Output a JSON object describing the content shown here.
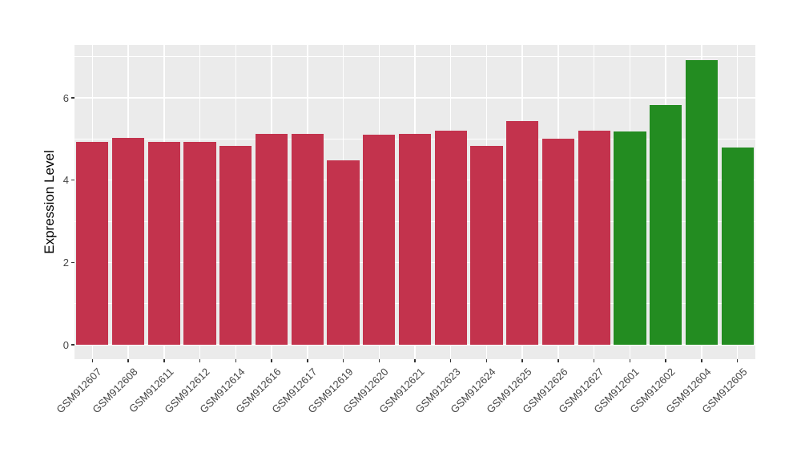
{
  "chart_data": {
    "type": "bar",
    "title": "",
    "xlabel": "",
    "ylabel": "Expression Level",
    "categories": [
      "GSM912607",
      "GSM912608",
      "GSM912611",
      "GSM912612",
      "GSM912614",
      "GSM912616",
      "GSM912617",
      "GSM912619",
      "GSM912620",
      "GSM912621",
      "GSM912623",
      "GSM912624",
      "GSM912625",
      "GSM912626",
      "GSM912627",
      "GSM912601",
      "GSM912602",
      "GSM912604",
      "GSM912605"
    ],
    "values": [
      4.93,
      5.02,
      4.92,
      4.93,
      4.84,
      5.13,
      5.13,
      4.49,
      5.1,
      5.13,
      5.2,
      4.84,
      5.44,
      5.01,
      5.21,
      5.19,
      5.83,
      6.92,
      4.8
    ],
    "bar_groups": [
      "red",
      "red",
      "red",
      "red",
      "red",
      "red",
      "red",
      "red",
      "red",
      "red",
      "red",
      "red",
      "red",
      "red",
      "red",
      "green",
      "green",
      "green",
      "green"
    ],
    "group_colors": {
      "red": "#C3334D",
      "green": "#238C21"
    },
    "yticks": [
      0,
      2,
      4,
      6
    ],
    "ytick_labels": [
      "0",
      "2",
      "4",
      "6"
    ],
    "minor_yticks": [
      1,
      3,
      5,
      7
    ],
    "ylim": [
      -0.35,
      7.29
    ],
    "x_tick_angle": -45,
    "bar_width_fraction": 0.9,
    "grid": "on",
    "legend": "none",
    "panel_bg": "#EBEBEB",
    "grid_color": "#FFFFFF",
    "axis_text_color": "#454545",
    "tick_color": "#333333"
  }
}
